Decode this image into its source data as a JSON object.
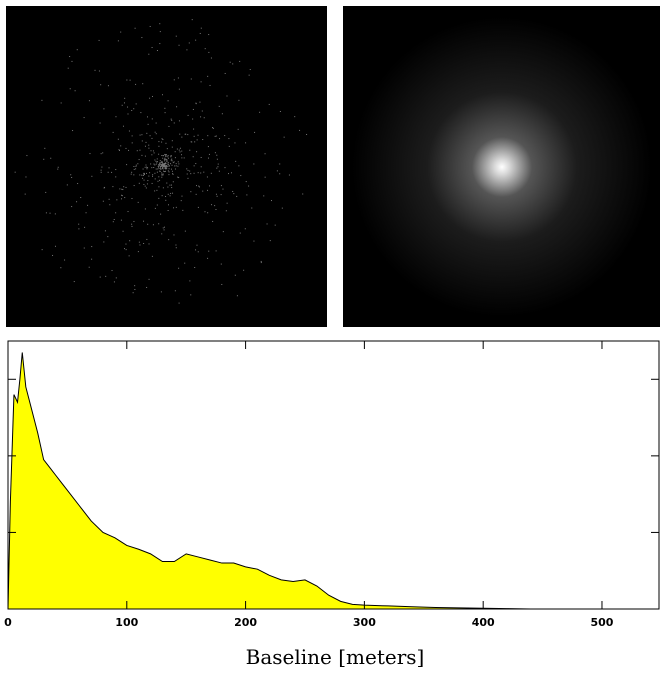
{
  "chart_data": {
    "type": "area",
    "xlabel": "Baseline [meters]",
    "x": [
      0,
      2,
      5,
      8,
      10,
      12,
      15,
      20,
      25,
      30,
      35,
      40,
      45,
      50,
      60,
      70,
      80,
      90,
      100,
      110,
      120,
      130,
      140,
      150,
      160,
      170,
      180,
      190,
      200,
      210,
      220,
      230,
      240,
      250,
      260,
      270,
      280,
      290,
      300,
      320,
      340,
      360,
      380,
      400,
      420,
      440,
      548
    ],
    "values": [
      0,
      1.4,
      2.8,
      2.7,
      3.0,
      3.35,
      2.9,
      2.6,
      2.3,
      1.95,
      1.85,
      1.75,
      1.65,
      1.55,
      1.35,
      1.15,
      1.0,
      0.93,
      0.83,
      0.78,
      0.72,
      0.62,
      0.62,
      0.72,
      0.68,
      0.64,
      0.6,
      0.6,
      0.55,
      0.52,
      0.44,
      0.38,
      0.36,
      0.38,
      0.3,
      0.18,
      0.1,
      0.06,
      0.05,
      0.04,
      0.03,
      0.02,
      0.015,
      0.01,
      0.005,
      0,
      0
    ],
    "color": "#ffff00",
    "line_color": "#000000",
    "xlim": [
      0,
      548
    ],
    "ylim": [
      0,
      3.5
    ],
    "xticks": [
      0,
      100,
      200,
      300,
      400,
      500
    ],
    "yticks": [
      0,
      1,
      2,
      3
    ]
  }
}
